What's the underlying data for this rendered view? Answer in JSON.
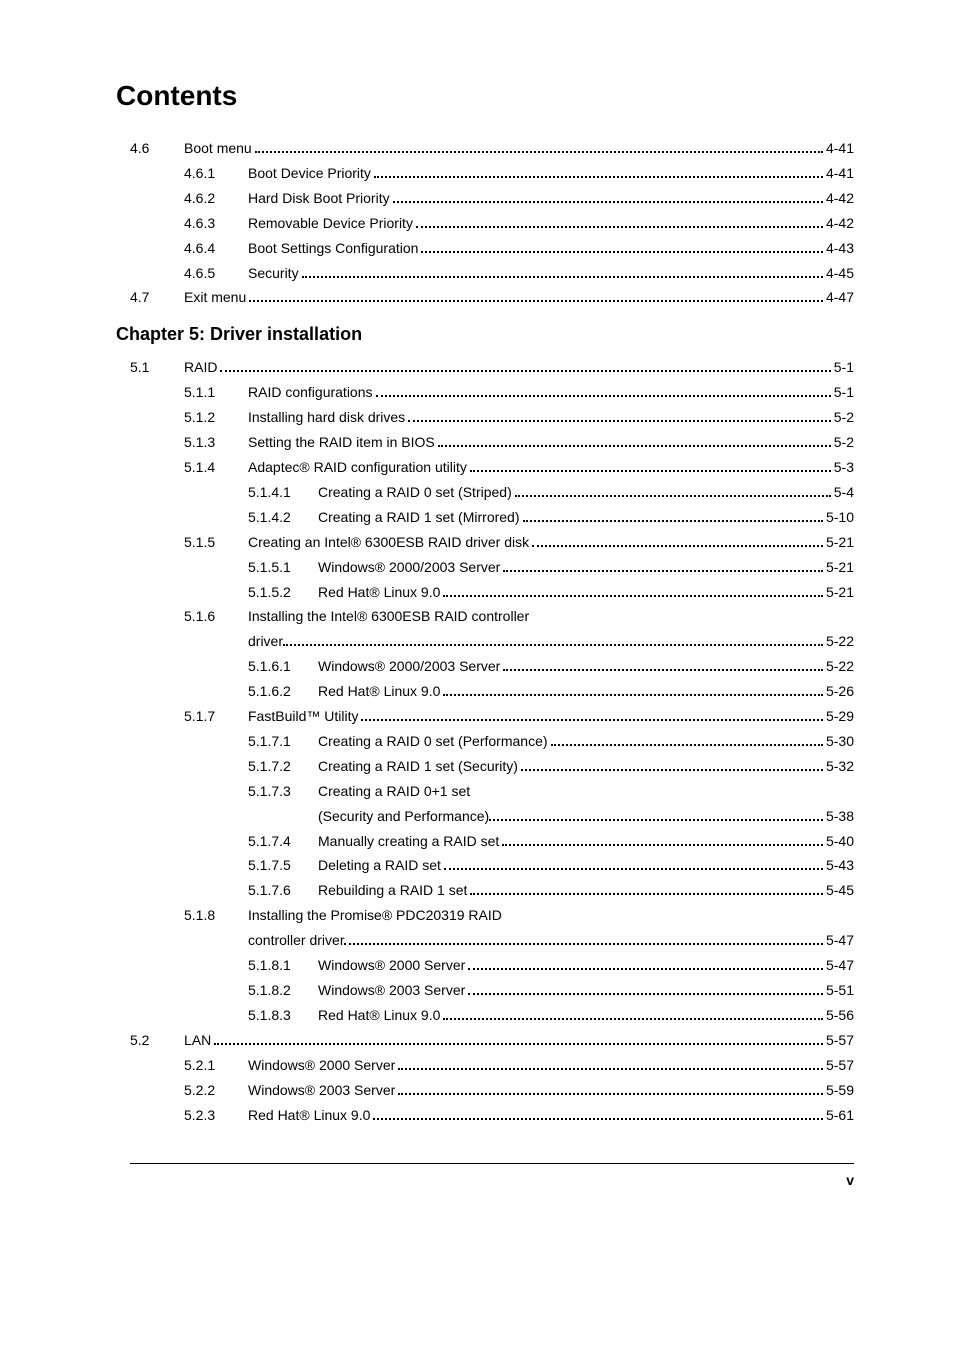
{
  "title": "Contents",
  "chapter_heading": "Chapter 5: Driver installation",
  "footer_page": "v",
  "entries": [
    {
      "lvl": 1,
      "sec": "4.6",
      "label": "Boot menu",
      "page": "4-41"
    },
    {
      "lvl": 2,
      "sub": "4.6.1",
      "label": "Boot Device Priority",
      "page": "4-41"
    },
    {
      "lvl": 2,
      "sub": "4.6.2",
      "label": "Hard Disk Boot Priority",
      "page": "4-42"
    },
    {
      "lvl": 2,
      "sub": "4.6.3",
      "label": "Removable Device Priority",
      "page": "4-42"
    },
    {
      "lvl": 2,
      "sub": "4.6.4",
      "label": "Boot Settings Configuration",
      "page": "4-43"
    },
    {
      "lvl": 2,
      "sub": "4.6.5",
      "label": "Security",
      "page": "4-45"
    },
    {
      "lvl": 1,
      "sec": "4.7",
      "label": "Exit menu",
      "page": "4-47"
    },
    {
      "type": "chapter"
    },
    {
      "lvl": 1,
      "sec": "5.1",
      "label": "RAID",
      "page": "5-1"
    },
    {
      "lvl": 2,
      "sub": "5.1.1",
      "label": "RAID configurations",
      "page": "5-1"
    },
    {
      "lvl": 2,
      "sub": "5.1.2",
      "label": "Installing hard disk drives",
      "page": "5-2"
    },
    {
      "lvl": 2,
      "sub": "5.1.3",
      "label": "Setting the RAID item in BIOS",
      "page": "5-2"
    },
    {
      "lvl": 2,
      "sub": "5.1.4",
      "label": "Adaptec® RAID configuration utility",
      "page": "5-3"
    },
    {
      "lvl": 3,
      "subsub": "5.1.4.1",
      "label": "Creating a RAID 0 set (Striped)",
      "page": "5-4"
    },
    {
      "lvl": 3,
      "subsub": "5.1.4.2",
      "label": "Creating a RAID 1 set (Mirrored)",
      "page": "5-10"
    },
    {
      "lvl": 2,
      "sub": "5.1.5",
      "label": "Creating an Intel® 6300ESB RAID driver disk",
      "page": "5-21"
    },
    {
      "lvl": 3,
      "subsub": "5.1.5.1",
      "label": "Windows® 2000/2003 Server",
      "page": "5-21"
    },
    {
      "lvl": 3,
      "subsub": "5.1.5.2",
      "label": "Red Hat® Linux 9.0",
      "page": "5-21"
    },
    {
      "lvl": 2,
      "sub": "5.1.6",
      "label_wrap_first": "Installing the Intel® 6300ESB RAID controller",
      "label_wrap_second": "driver",
      "page": "5-22"
    },
    {
      "lvl": 3,
      "subsub": "5.1.6.1",
      "label": "Windows® 2000/2003 Server",
      "page": "5-22"
    },
    {
      "lvl": 3,
      "subsub": "5.1.6.2",
      "label": "Red Hat® Linux 9.0",
      "page": "5-26"
    },
    {
      "lvl": 2,
      "sub": "5.1.7",
      "label": "FastBuild™ Utility",
      "page": "5-29"
    },
    {
      "lvl": 3,
      "subsub": "5.1.7.1",
      "label": "Creating a RAID 0 set (Performance)",
      "page": "5-30"
    },
    {
      "lvl": 3,
      "subsub": "5.1.7.2",
      "label": "Creating a RAID 1 set (Security)",
      "page": "5-32"
    },
    {
      "lvl": 3,
      "subsub": "5.1.7.3",
      "label_wrap_first": "Creating a RAID 0+1 set",
      "label_wrap_second": "(Security and Performance)",
      "page": "5-38"
    },
    {
      "lvl": 3,
      "subsub": "5.1.7.4",
      "label": "Manually creating a RAID set",
      "page": "5-40"
    },
    {
      "lvl": 3,
      "subsub": "5.1.7.5",
      "label": "Deleting a RAID set",
      "page": "5-43"
    },
    {
      "lvl": 3,
      "subsub": "5.1.7.6",
      "label": "Rebuilding a RAID 1 set",
      "page": "5-45"
    },
    {
      "lvl": 2,
      "sub": "5.1.8",
      "label_wrap_first": "Installing the Promise® PDC20319 RAID",
      "label_wrap_second": "controller driver",
      "page": "5-47"
    },
    {
      "lvl": 3,
      "subsub": "5.1.8.1",
      "label": "Windows® 2000 Server",
      "page": "5-47"
    },
    {
      "lvl": 3,
      "subsub": "5.1.8.2",
      "label": "Windows® 2003 Server",
      "page": "5-51"
    },
    {
      "lvl": 3,
      "subsub": "5.1.8.3",
      "label": "Red Hat® Linux 9.0",
      "page": "5-56"
    },
    {
      "lvl": 1,
      "sec": "5.2",
      "label": "LAN",
      "page": "5-57"
    },
    {
      "lvl": 2,
      "sub": "5.2.1",
      "label": "Windows® 2000 Server",
      "page": "5-57"
    },
    {
      "lvl": 2,
      "sub": "5.2.2",
      "label": "Windows® 2003 Server",
      "page": "5-59"
    },
    {
      "lvl": 2,
      "sub": "5.2.3",
      "label": "Red Hat® Linux 9.0",
      "page": "5-61"
    }
  ]
}
